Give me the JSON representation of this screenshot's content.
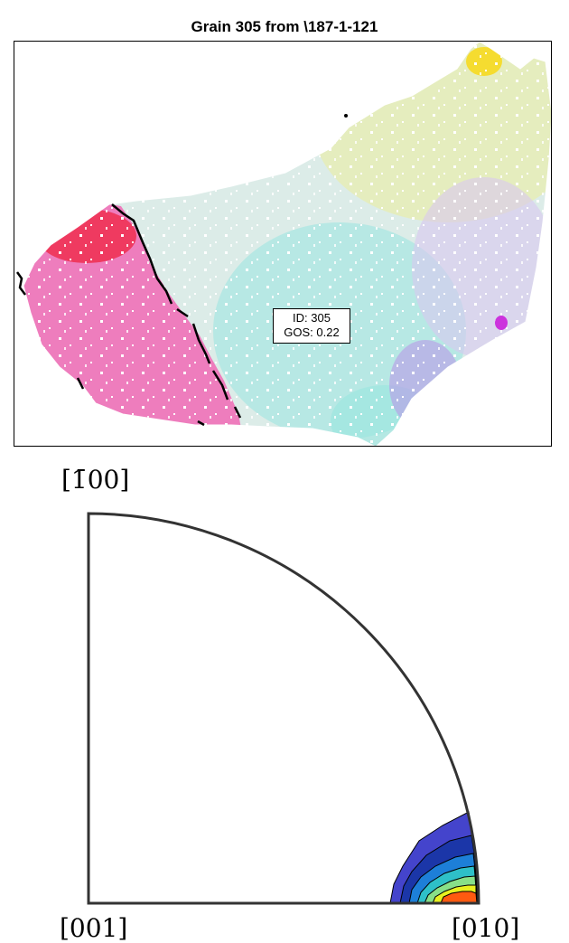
{
  "figure": {
    "title": "Grain 305 from \\187-1-121"
  },
  "grain_map": {
    "label_id": "ID: 305",
    "label_gos": "GOS: 0.22",
    "colors": {
      "pink_region": "#ee77bb",
      "red_corner": "#ee3355",
      "cyan_region": "#99e6e0",
      "light_gray_region": "#dcece8",
      "yellow_region": "#e8eeb0",
      "lavender_region": "#d8c8f0",
      "purple_region": "#b99ae8",
      "magenta_spot": "#cc33dd",
      "boundary": "#000000"
    }
  },
  "pole_figure": {
    "labels": {
      "top": "[1̄00]",
      "bottom_left": "[001]",
      "bottom_right": "[010]"
    },
    "contour_colors": [
      "#4444cc",
      "#1b36a8",
      "#1d7fd8",
      "#2ec0c8",
      "#88e088",
      "#e8f020",
      "#ff5a10"
    ]
  }
}
